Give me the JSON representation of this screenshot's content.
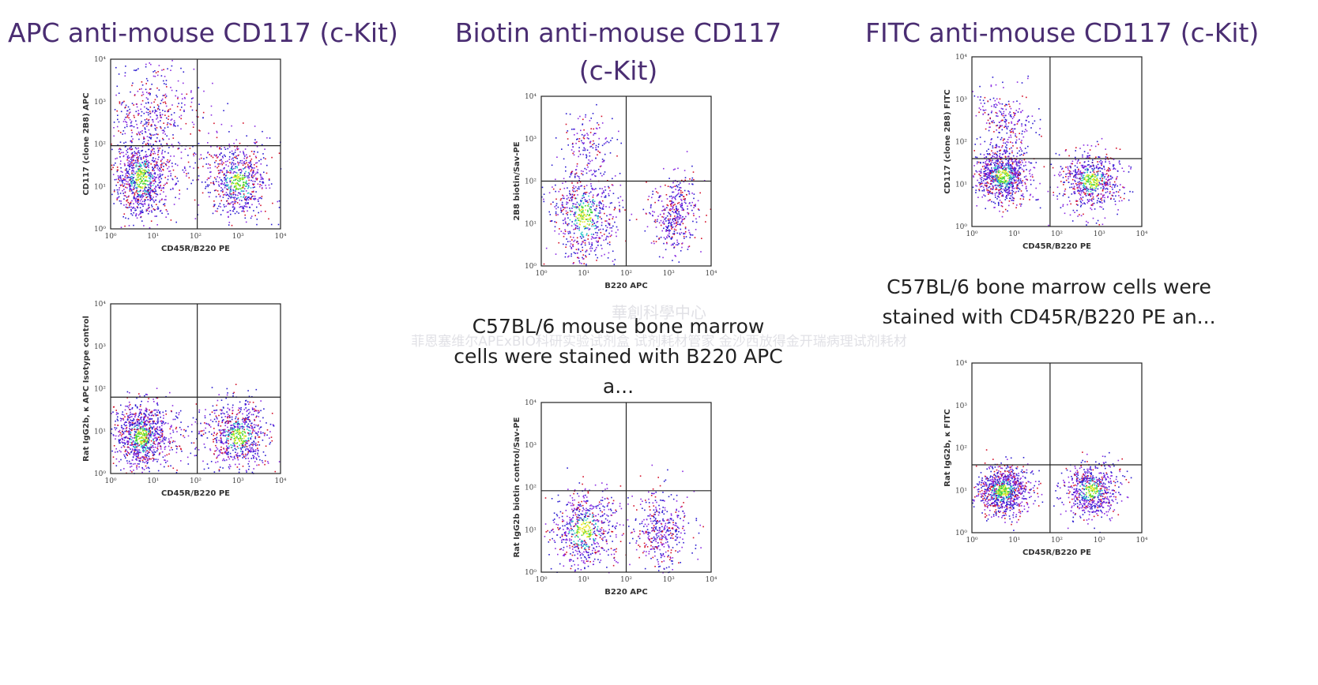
{
  "products": [
    {
      "title": "APC anti-mouse CD117 (c-Kit)",
      "caption": "",
      "plots": [
        {
          "xlabel": "CD45R/B220 PE",
          "ylabel": "CD117 (clone 2B8) APC"
        },
        {
          "xlabel": "CD45R/B220 PE",
          "ylabel": "Rat IgG2b, κ APC Isotype control"
        }
      ]
    },
    {
      "title": "Biotin anti-mouse CD117 (c-Kit)",
      "caption": "C57BL/6 mouse bone marrow cells were stained with B220 APC a...",
      "plots": [
        {
          "xlabel": "B220 APC",
          "ylabel": "2B8 biotin/Sav-PE"
        },
        {
          "xlabel": "B220 APC",
          "ylabel": "Rat IgG2b biotin control/Sav-PE"
        }
      ]
    },
    {
      "title": "FITC anti-mouse CD117 (c-Kit)",
      "caption": "C57BL/6 bone marrow cells were stained with CD45R/B220 PE an...",
      "plots": [
        {
          "xlabel": "CD45R/B220 PE",
          "ylabel": "CD117 (clone 2B8) FITC"
        },
        {
          "xlabel": "CD45R/B220 PE",
          "ylabel": "Rat IgG2b, κ FITC"
        }
      ]
    }
  ],
  "tick_labels": [
    "10⁰",
    "10¹",
    "10²",
    "10³",
    "10⁴"
  ],
  "watermark": {
    "line1": "華創科學中心",
    "line2": "菲恩塞维尔APExBIO科研实验试剂盒   试剂耗材管家   金沙西放得金开瑞病理试剂耗材"
  },
  "colors": {
    "title": "#4a2d72",
    "caption": "#222222",
    "dot_blue": "#2a1bd0",
    "dot_purple": "#8a2be2",
    "dot_red": "#d4112a",
    "dot_cyan": "#27c7c7",
    "dot_green": "#3cd43c",
    "dot_yellow": "#e6e62a"
  }
}
